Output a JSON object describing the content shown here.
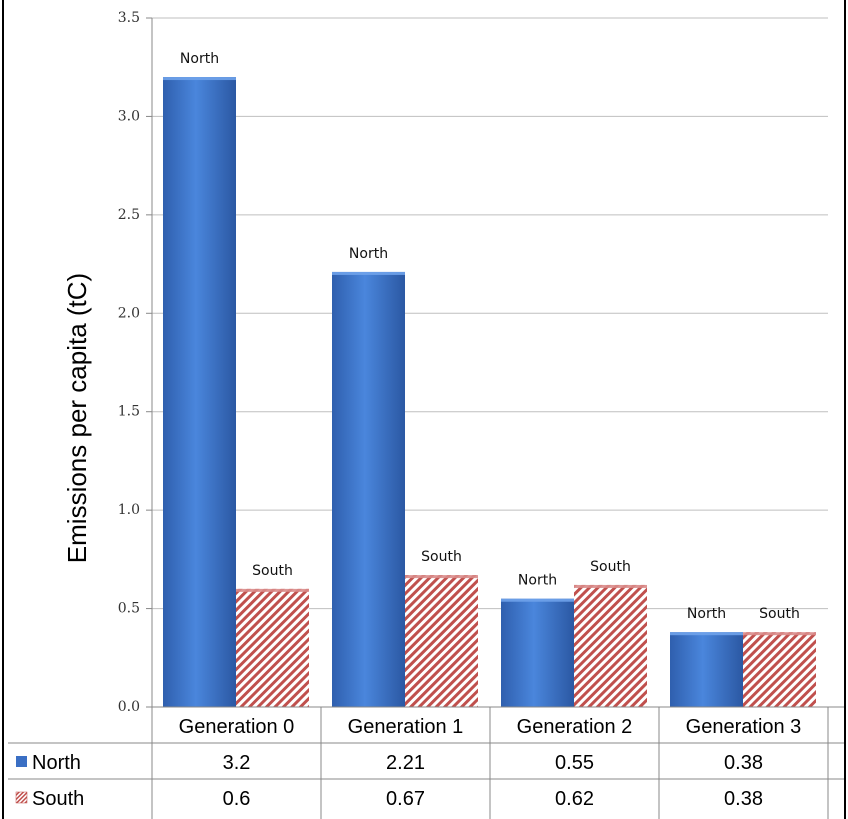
{
  "chart_data": {
    "type": "bar",
    "title": "",
    "xlabel": "",
    "ylabel": "Emissions per capita (tC)",
    "ylim": [
      0,
      3.5
    ],
    "yticks": [
      "0.0",
      "0.5",
      "1.0",
      "1.5",
      "2.0",
      "2.5",
      "3.0",
      "3.5"
    ],
    "grid": true,
    "legend": "data-table-left",
    "categories": [
      "Generation 0",
      "Generation 1",
      "Generation 2",
      "Generation 3"
    ],
    "series": [
      {
        "name": "North",
        "values": [
          3.2,
          2.21,
          0.55,
          0.38
        ],
        "table_values": [
          "3.2",
          "2.21",
          "0.55",
          "0.38"
        ],
        "color": "#3a6fc4",
        "pattern": "solid-gradient"
      },
      {
        "name": "South",
        "values": [
          0.6,
          0.67,
          0.62,
          0.38
        ],
        "table_values": [
          "0.6",
          "0.67",
          "0.62",
          "0.38"
        ],
        "color": "#c0504d",
        "pattern": "diagonal-hatch"
      }
    ],
    "data_labels": [
      "North",
      "South"
    ]
  }
}
